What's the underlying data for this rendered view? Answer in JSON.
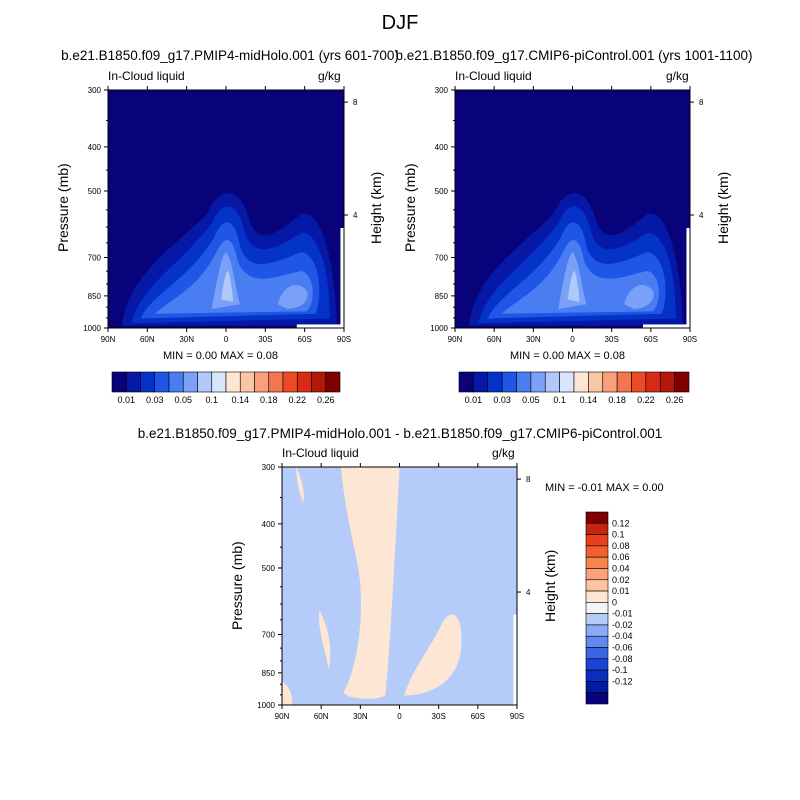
{
  "page_title": "DJF",
  "panel_left": {
    "case_title": "b.e21.B1850.f09_g17.PMIP4-midHolo.001 (yrs 601-700)",
    "var_label": "In-Cloud liquid",
    "units": "g/kg",
    "minmax": "MIN =   0.00  MAX =   0.08"
  },
  "panel_right": {
    "case_title": "b.e21.B1850.f09_g17.CMIP6-piControl.001 (yrs 1001-1100)",
    "var_label": "In-Cloud liquid",
    "units": "g/kg",
    "minmax": "MIN =   0.00  MAX =   0.08"
  },
  "panel_diff": {
    "case_title": "b.e21.B1850.f09_g17.PMIP4-midHolo.001 - b.e21.B1850.f09_g17.CMIP6-piControl.001",
    "var_label": "In-Cloud liquid",
    "units": "g/kg",
    "minmax": "MIN =  -0.01  MAX =   0.00"
  },
  "axes": {
    "ylabel_left": "Pressure (mb)",
    "ylabel_right": "Height (km)"
  },
  "colors": {
    "main_palette": [
      "#08037a",
      "#0519a6",
      "#0533c8",
      "#1f56e8",
      "#4a7cf2",
      "#7ba0f7",
      "#b0c8fa",
      "#d9e5fb",
      "#fde6d4",
      "#fbc6a4",
      "#f8a07a",
      "#f47650",
      "#ef4a26",
      "#d82a14",
      "#b2180a",
      "#800000"
    ],
    "diff_palette": [
      "#800000",
      "#c2260e",
      "#e8401c",
      "#f3602f",
      "#f88450",
      "#fba27a",
      "#fcc5a2",
      "#fde6d4",
      "#f4f4f4",
      "#b5ccfa",
      "#8aabf5",
      "#6189ef",
      "#3a66e6",
      "#1c45d6",
      "#0a2fbf",
      "#041aa0",
      "#08037a"
    ]
  },
  "chart_data": [
    {
      "type": "heatmap",
      "title": "b.e21.B1850.f09_g17.PMIP4-midHolo.001 (yrs 601-700)",
      "xlabel": "",
      "ylabel": "Pressure (mb)",
      "y2label": "Height (km)",
      "x_tick_labels": [
        "90N",
        "60N",
        "30N",
        "0",
        "30S",
        "60S",
        "90S"
      ],
      "y_ticks": [
        300,
        400,
        500,
        700,
        850,
        1000
      ],
      "y2_ticks": [
        8,
        4
      ],
      "y_scale": "log-pressure",
      "xlim": [
        90,
        -90
      ],
      "ylim": [
        1000,
        300
      ],
      "colorbar_labels": [
        "0.01",
        "0.03",
        "0.05",
        "0.1",
        "0.14",
        "0.18",
        "0.22",
        "0.26"
      ],
      "min": 0.0,
      "max": 0.08
    },
    {
      "type": "heatmap",
      "title": "b.e21.B1850.f09_g17.CMIP6-piControl.001 (yrs 1001-1100)",
      "xlabel": "",
      "ylabel": "Pressure (mb)",
      "y2label": "Height (km)",
      "x_tick_labels": [
        "90N",
        "60N",
        "30N",
        "0",
        "30S",
        "60S",
        "90S"
      ],
      "y_ticks": [
        300,
        400,
        500,
        700,
        850,
        1000
      ],
      "y2_ticks": [
        8,
        4
      ],
      "y_scale": "log-pressure",
      "xlim": [
        90,
        -90
      ],
      "ylim": [
        1000,
        300
      ],
      "colorbar_labels": [
        "0.01",
        "0.03",
        "0.05",
        "0.1",
        "0.14",
        "0.18",
        "0.22",
        "0.26"
      ],
      "min": 0.0,
      "max": 0.08
    },
    {
      "type": "heatmap",
      "title": "b.e21.B1850.f09_g17.PMIP4-midHolo.001 - b.e21.B1850.f09_g17.CMIP6-piControl.001",
      "xlabel": "",
      "ylabel": "Pressure (mb)",
      "y2label": "Height (km)",
      "x_tick_labels": [
        "90N",
        "60N",
        "30N",
        "0",
        "30S",
        "60S",
        "90S"
      ],
      "y_ticks": [
        300,
        400,
        500,
        700,
        850,
        1000
      ],
      "y2_ticks": [
        8,
        4
      ],
      "y_scale": "log-pressure",
      "xlim": [
        90,
        -90
      ],
      "ylim": [
        1000,
        300
      ],
      "colorbar_labels": [
        "0.12",
        "0.1",
        "0.08",
        "0.06",
        "0.04",
        "0.02",
        "0.01",
        "0",
        "-0.01",
        "-0.02",
        "-0.04",
        "-0.06",
        "-0.08",
        "-0.1",
        "-0.12"
      ],
      "min": -0.01,
      "max": 0.0
    }
  ]
}
